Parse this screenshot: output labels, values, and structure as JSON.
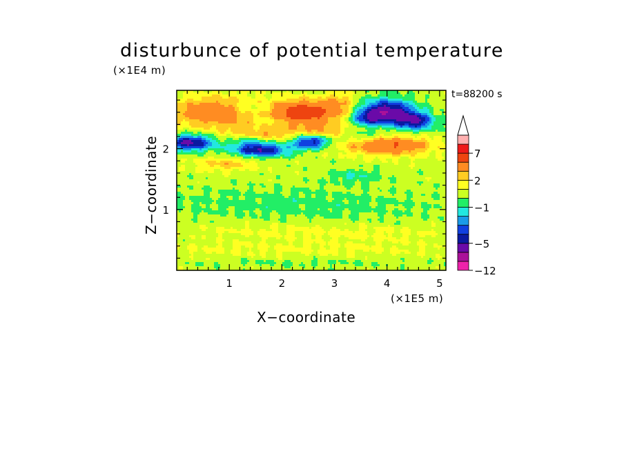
{
  "chart_data": {
    "type": "heatmap",
    "title": "disturbunce of potential temperature",
    "xlabel": "X−coordinate",
    "ylabel": "Z−coordinate",
    "x_unit_label": "(×1E5 m)",
    "y_unit_label": "(×1E4 m)",
    "time_label": "t=88200 s",
    "xlim": [
      0,
      5.12
    ],
    "ylim": [
      0,
      2.96
    ],
    "x_ticks": [
      1,
      2,
      3,
      4,
      5
    ],
    "x_tick_labels": [
      "1",
      "2",
      "3",
      "4",
      "5"
    ],
    "y_ticks": [
      1,
      2
    ],
    "y_tick_labels": [
      "1",
      "2"
    ],
    "grid": false,
    "colorbar": {
      "levels": [
        -12,
        -9,
        -7,
        -5,
        -4,
        -3,
        -2,
        -1,
        0,
        1,
        2,
        3,
        5,
        7,
        9,
        11
      ],
      "tick_values": [
        -12,
        -5,
        -1,
        2,
        7
      ],
      "tick_labels": [
        "−12",
        "−5",
        "−1",
        "2",
        "7"
      ],
      "colors": [
        "#ee22aa",
        "#aa1199",
        "#6a0aa8",
        "#0a1aa0",
        "#1040e0",
        "#1a9ae8",
        "#22e8e0",
        "#22ee66",
        "#ccff22",
        "#ffff22",
        "#ffcc22",
        "#ff8c22",
        "#ee4410",
        "#ee1a1a",
        "#ffb0b0"
      ],
      "extend": "max",
      "extend_color": "#ffffff"
    },
    "background_value": 0.5,
    "features": [
      {
        "x": 0.75,
        "z": 2.6,
        "sx": 0.6,
        "sz": 0.18,
        "value": 4
      },
      {
        "x": 0.25,
        "z": 2.1,
        "sx": 0.32,
        "sz": 0.09,
        "value": -6
      },
      {
        "x": 0.95,
        "z": 1.75,
        "sx": 0.4,
        "sz": 0.08,
        "value": 2
      },
      {
        "x": 1.6,
        "z": 1.98,
        "sx": 0.38,
        "sz": 0.08,
        "value": -5.5
      },
      {
        "x": 1.35,
        "z": 2.12,
        "sx": 0.22,
        "sz": 0.06,
        "value": -2
      },
      {
        "x": 1.75,
        "z": 2.25,
        "sx": 0.55,
        "sz": 0.1,
        "value": 2
      },
      {
        "x": 1.4,
        "z": 2.65,
        "sx": 0.3,
        "sz": 0.08,
        "value": -2
      },
      {
        "x": 1.75,
        "z": 2.45,
        "sx": 0.2,
        "sz": 0.06,
        "value": -1
      },
      {
        "x": 2.4,
        "z": 2.6,
        "sx": 0.45,
        "sz": 0.14,
        "value": 6
      },
      {
        "x": 2.55,
        "z": 2.12,
        "sx": 0.25,
        "sz": 0.08,
        "value": -5.5
      },
      {
        "x": 2.8,
        "z": 2.3,
        "sx": 0.3,
        "sz": 0.1,
        "value": 2
      },
      {
        "x": 3.1,
        "z": 2.75,
        "sx": 0.2,
        "sz": 0.15,
        "value": 2
      },
      {
        "x": 4.0,
        "z": 2.6,
        "sx": 0.35,
        "sz": 0.14,
        "value": -7
      },
      {
        "x": 4.55,
        "z": 2.45,
        "sx": 0.25,
        "sz": 0.1,
        "value": -5
      },
      {
        "x": 3.6,
        "z": 2.5,
        "sx": 0.2,
        "sz": 0.08,
        "value": -3
      },
      {
        "x": 4.05,
        "z": 2.05,
        "sx": 0.55,
        "sz": 0.11,
        "value": 4.5
      },
      {
        "x": 3.55,
        "z": 2.2,
        "sx": 0.25,
        "sz": 0.06,
        "value": -1.5
      },
      {
        "x": 3.4,
        "z": 1.55,
        "sx": 0.35,
        "sz": 0.08,
        "value": -1.5
      },
      {
        "x": 1.25,
        "z": 1.12,
        "sx": 1.6,
        "sz": 0.18,
        "value": -0.6
      },
      {
        "x": 3.2,
        "z": 1.05,
        "sx": 1.6,
        "sz": 0.2,
        "value": -0.6
      },
      {
        "x": 2.2,
        "z": 0.35,
        "sx": 2.5,
        "sz": 0.08,
        "value": 0.7
      },
      {
        "x": 1.9,
        "z": 0.65,
        "sx": 1.2,
        "sz": 0.1,
        "value": 0.7
      },
      {
        "x": 3.9,
        "z": 0.6,
        "sx": 1.0,
        "sz": 0.1,
        "value": 0.6
      },
      {
        "x": 2.2,
        "z": 0.12,
        "sx": 1.6,
        "sz": 0.04,
        "value": -0.6
      }
    ],
    "noise_amplitude": 0.45
  }
}
